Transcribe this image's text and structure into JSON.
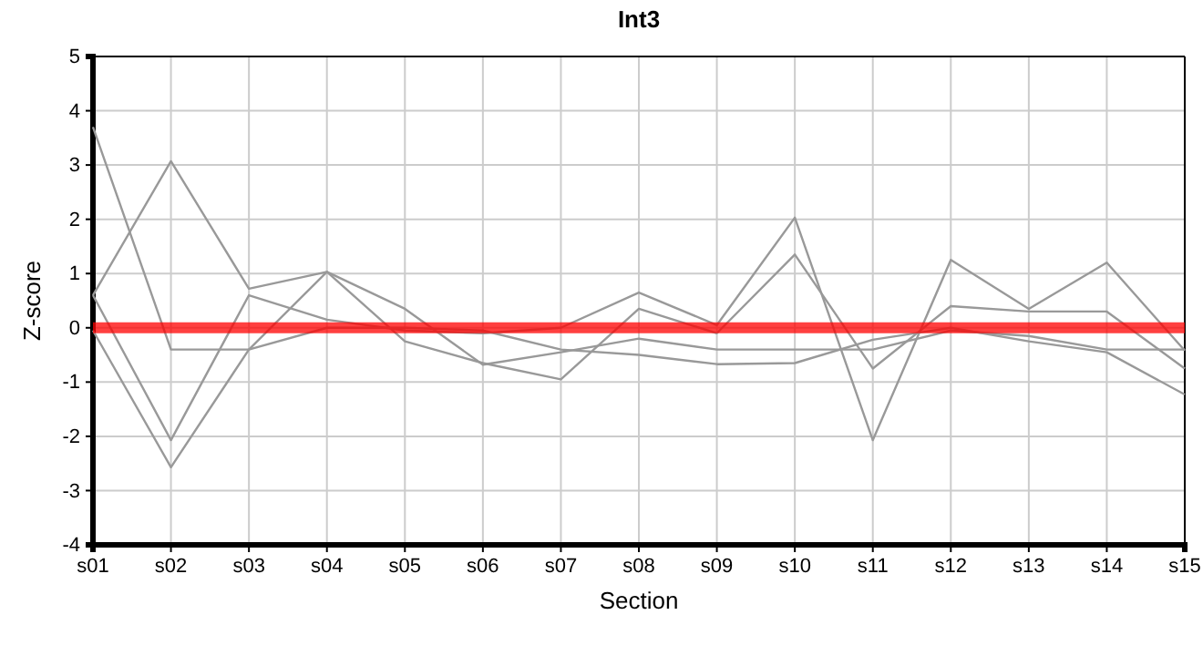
{
  "chart_data": {
    "type": "line",
    "title": "Int3",
    "xlabel": "Section",
    "ylabel": "Z-score",
    "categories": [
      "s01",
      "s02",
      "s03",
      "s04",
      "s05",
      "s06",
      "s07",
      "s08",
      "s09",
      "s10",
      "s11",
      "s12",
      "s13",
      "s14",
      "s15"
    ],
    "series": [
      {
        "color": "#999999",
        "values": [
          3.7,
          -0.4,
          -0.4,
          0.0,
          0.0,
          -0.05,
          -0.4,
          -0.5,
          -0.67,
          -0.65,
          -0.22,
          0.0,
          -0.25,
          -0.45,
          -1.23
        ]
      },
      {
        "color": "#999999",
        "values": [
          0.6,
          3.07,
          0.72,
          1.03,
          0.35,
          -0.68,
          -0.45,
          -0.2,
          -0.4,
          -0.4,
          -0.4,
          -0.05,
          -0.15,
          -0.4,
          -0.4
        ]
      },
      {
        "color": "#999999",
        "values": [
          0.6,
          -2.07,
          0.6,
          0.15,
          -0.05,
          -0.1,
          0.0,
          0.65,
          0.05,
          2.03,
          -2.07,
          1.25,
          0.35,
          1.2,
          -0.42
        ]
      },
      {
        "color": "#999999",
        "values": [
          -0.05,
          -2.57,
          -0.4,
          1.03,
          -0.25,
          -0.65,
          -0.95,
          0.35,
          -0.1,
          1.35,
          -0.75,
          0.4,
          0.3,
          0.3,
          -0.75
        ]
      }
    ],
    "ylim": [
      -4,
      5
    ],
    "yticks": [
      -4,
      -3,
      -2,
      -1,
      0,
      1,
      2,
      3,
      4,
      5
    ],
    "grid": true,
    "marker": "none",
    "line_style": "solid",
    "ref_lines": [
      {
        "axis": "y",
        "value": 0,
        "color": "#ff0000"
      }
    ]
  }
}
